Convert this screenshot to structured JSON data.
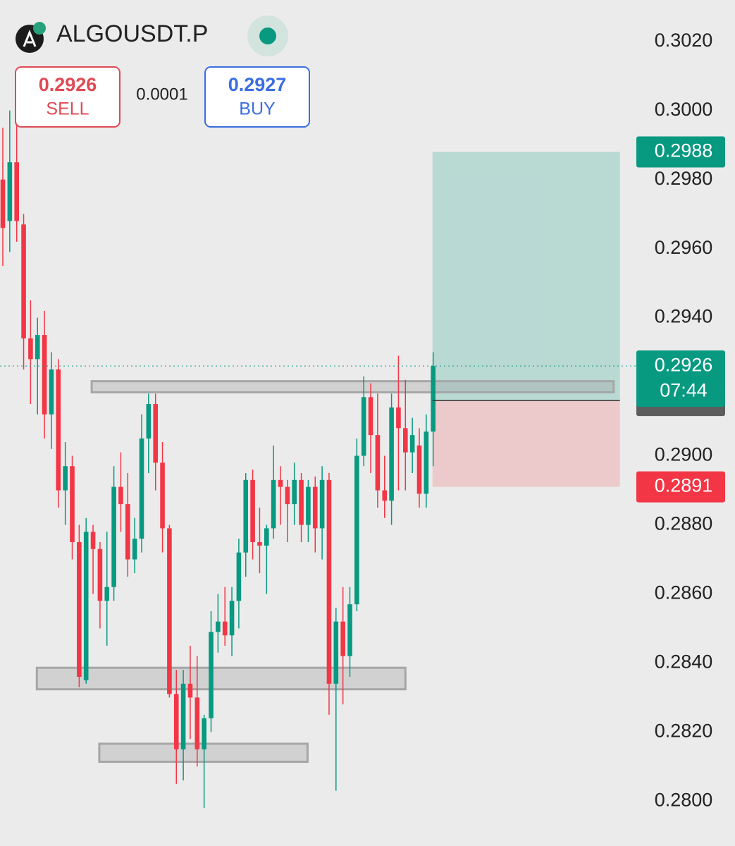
{
  "chart_data": {
    "type": "candlestick",
    "title": "ALGOUSDT.P",
    "sell": {
      "price": 0.2926,
      "label": "SELL"
    },
    "spread": 0.0001,
    "buy": {
      "price": 0.2927,
      "label": "BUY"
    },
    "ylim": [
      0.2787,
      0.3032
    ],
    "yticks": [
      {
        "value": 0.28,
        "label": "0.2800"
      },
      {
        "value": 0.282,
        "label": "0.2820"
      },
      {
        "value": 0.284,
        "label": "0.2840"
      },
      {
        "value": 0.286,
        "label": "0.2860"
      },
      {
        "value": 0.288,
        "label": "0.2880"
      },
      {
        "value": 0.29,
        "label": "0.2900"
      },
      {
        "value": 0.294,
        "label": "0.2940"
      },
      {
        "value": 0.296,
        "label": "0.2960"
      },
      {
        "value": 0.298,
        "label": "0.2980"
      },
      {
        "value": 0.3,
        "label": "0.3000"
      },
      {
        "value": 0.302,
        "label": "0.3020"
      }
    ],
    "grid": false,
    "colors": {
      "up": "#089981",
      "down": "#f23645"
    },
    "series": [
      {
        "open": [
          0.298,
          0.2968,
          0.2985,
          0.2967,
          0.2934,
          0.2928,
          0.2935,
          0.2912,
          0.2925,
          0.289,
          0.2897,
          0.2875,
          0.2835,
          0.2878,
          0.2873,
          0.2858,
          0.2862,
          0.2891,
          0.2886,
          0.287,
          0.2876,
          0.2905,
          0.2915,
          0.2898,
          0.2879,
          0.2831,
          0.2815,
          0.2834,
          0.283,
          0.2815,
          0.2824,
          0.2849,
          0.2852,
          0.2848,
          0.2858,
          0.2872,
          0.2893,
          0.2875,
          0.2874,
          0.2879,
          0.2893,
          0.2891,
          0.2886,
          0.2893,
          0.288,
          0.2891,
          0.2879,
          0.2893,
          0.2834,
          0.2852,
          0.2842,
          0.2857,
          0.29,
          0.2917,
          0.2906,
          0.289,
          0.2887,
          0.2914,
          0.2908,
          0.2901,
          0.2903,
          0.2889,
          0.2907
        ],
        "high": [
          0.2995,
          0.3,
          0.2998,
          0.297,
          0.2945,
          0.294,
          0.2942,
          0.293,
          0.2928,
          0.2904,
          0.29,
          0.288,
          0.2882,
          0.288,
          0.2875,
          0.2878,
          0.2897,
          0.2901,
          0.2895,
          0.2882,
          0.2912,
          0.2918,
          0.2918,
          0.2904,
          0.288,
          0.2838,
          0.2838,
          0.2845,
          0.2842,
          0.2825,
          0.2855,
          0.286,
          0.2862,
          0.2862,
          0.2876,
          0.2895,
          0.2896,
          0.2885,
          0.288,
          0.2903,
          0.2897,
          0.2893,
          0.2898,
          0.2895,
          0.2893,
          0.2894,
          0.2897,
          0.2895,
          0.2856,
          0.2862,
          0.2862,
          0.2905,
          0.2923,
          0.2921,
          0.2918,
          0.29,
          0.2918,
          0.2929,
          0.2922,
          0.2911,
          0.2908,
          0.2912,
          0.293
        ],
        "low": [
          0.2955,
          0.2959,
          0.2962,
          0.2925,
          0.2915,
          0.2912,
          0.2905,
          0.2902,
          0.2885,
          0.288,
          0.287,
          0.2833,
          0.2834,
          0.286,
          0.285,
          0.2845,
          0.2858,
          0.2878,
          0.2865,
          0.2866,
          0.2872,
          0.2895,
          0.289,
          0.2872,
          0.283,
          0.2805,
          0.2806,
          0.2818,
          0.281,
          0.2798,
          0.282,
          0.2843,
          0.2845,
          0.2842,
          0.285,
          0.2865,
          0.287,
          0.2866,
          0.286,
          0.2876,
          0.288,
          0.2875,
          0.288,
          0.2875,
          0.2875,
          0.2872,
          0.287,
          0.2825,
          0.2803,
          0.2828,
          0.2836,
          0.2855,
          0.2897,
          0.2895,
          0.2885,
          0.2882,
          0.288,
          0.289,
          0.289,
          0.2895,
          0.2885,
          0.2885,
          0.2897
        ],
        "close": [
          0.2966,
          0.2985,
          0.2968,
          0.2934,
          0.2928,
          0.2935,
          0.2912,
          0.2925,
          0.289,
          0.2897,
          0.2875,
          0.2836,
          0.2878,
          0.2873,
          0.2858,
          0.2862,
          0.2891,
          0.2886,
          0.287,
          0.2876,
          0.2905,
          0.2915,
          0.2898,
          0.2879,
          0.2831,
          0.2815,
          0.2834,
          0.283,
          0.2815,
          0.2824,
          0.2849,
          0.2852,
          0.2848,
          0.2858,
          0.2872,
          0.2893,
          0.2875,
          0.2874,
          0.2879,
          0.2893,
          0.2891,
          0.2886,
          0.2893,
          0.288,
          0.2891,
          0.2879,
          0.2893,
          0.2834,
          0.2852,
          0.2842,
          0.2857,
          0.29,
          0.2917,
          0.2906,
          0.289,
          0.2887,
          0.2914,
          0.2908,
          0.2901,
          0.2906,
          0.2889,
          0.2907,
          0.2926
        ]
      }
    ],
    "last_price": {
      "value": 0.2926,
      "countdown": "07:44"
    },
    "position": {
      "entry": 0.2916,
      "target": 0.2988,
      "stop": 0.2891,
      "start": 61.9,
      "end": 88.9
    },
    "zones": [
      {
        "low": 0.2919,
        "high": 0.2921,
        "start": 12.8,
        "end": 88
      },
      {
        "low": 0.2833,
        "high": 0.2838,
        "start": 4.9,
        "end": 58
      },
      {
        "low": 0.2812,
        "high": 0.2816,
        "start": 13.9,
        "end": 43.9
      }
    ]
  }
}
